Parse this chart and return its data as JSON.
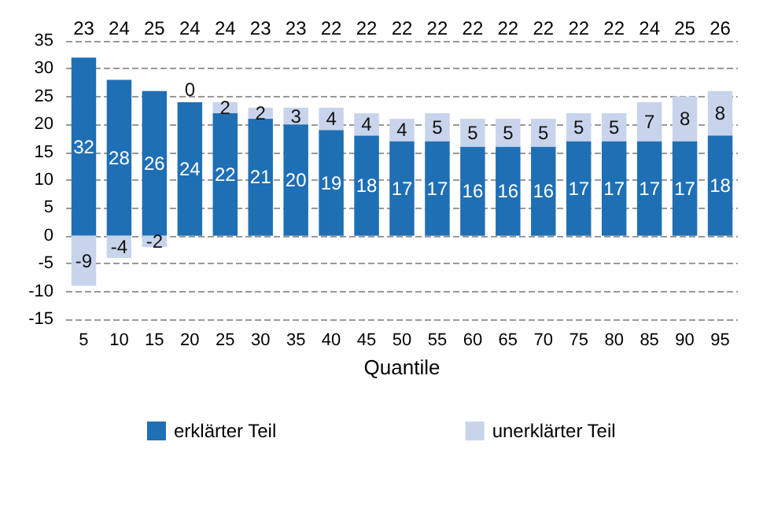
{
  "chart_data": {
    "type": "bar",
    "stacked": true,
    "xlabel": "Quantile",
    "categories": [
      "5",
      "10",
      "15",
      "20",
      "25",
      "30",
      "35",
      "40",
      "45",
      "50",
      "55",
      "60",
      "65",
      "70",
      "75",
      "80",
      "85",
      "90",
      "95"
    ],
    "series": [
      {
        "name": "erklärter Teil",
        "color": "#1f6fb5",
        "values": [
          32,
          28,
          26,
          24,
          22,
          21,
          20,
          19,
          18,
          17,
          17,
          16,
          16,
          16,
          17,
          17,
          17,
          17,
          18
        ]
      },
      {
        "name": "unerklärter Teil",
        "color": "#c8d4ec",
        "values": [
          -9,
          -4,
          -2,
          0,
          2,
          2,
          3,
          4,
          4,
          4,
          5,
          5,
          5,
          5,
          5,
          5,
          7,
          8,
          8
        ]
      }
    ],
    "annotations": [
      "23",
      "24",
      "25",
      "24",
      "24",
      "23",
      "23",
      "22",
      "22",
      "22",
      "22",
      "22",
      "22",
      "22",
      "22",
      "22",
      "24",
      "25",
      "26"
    ],
    "ylim": [
      -15,
      35
    ],
    "yticks": [
      -15,
      -10,
      -5,
      0,
      5,
      10,
      15,
      20,
      25,
      30,
      35
    ],
    "grid": "y",
    "legend": "bottom",
    "data_labels": true
  }
}
